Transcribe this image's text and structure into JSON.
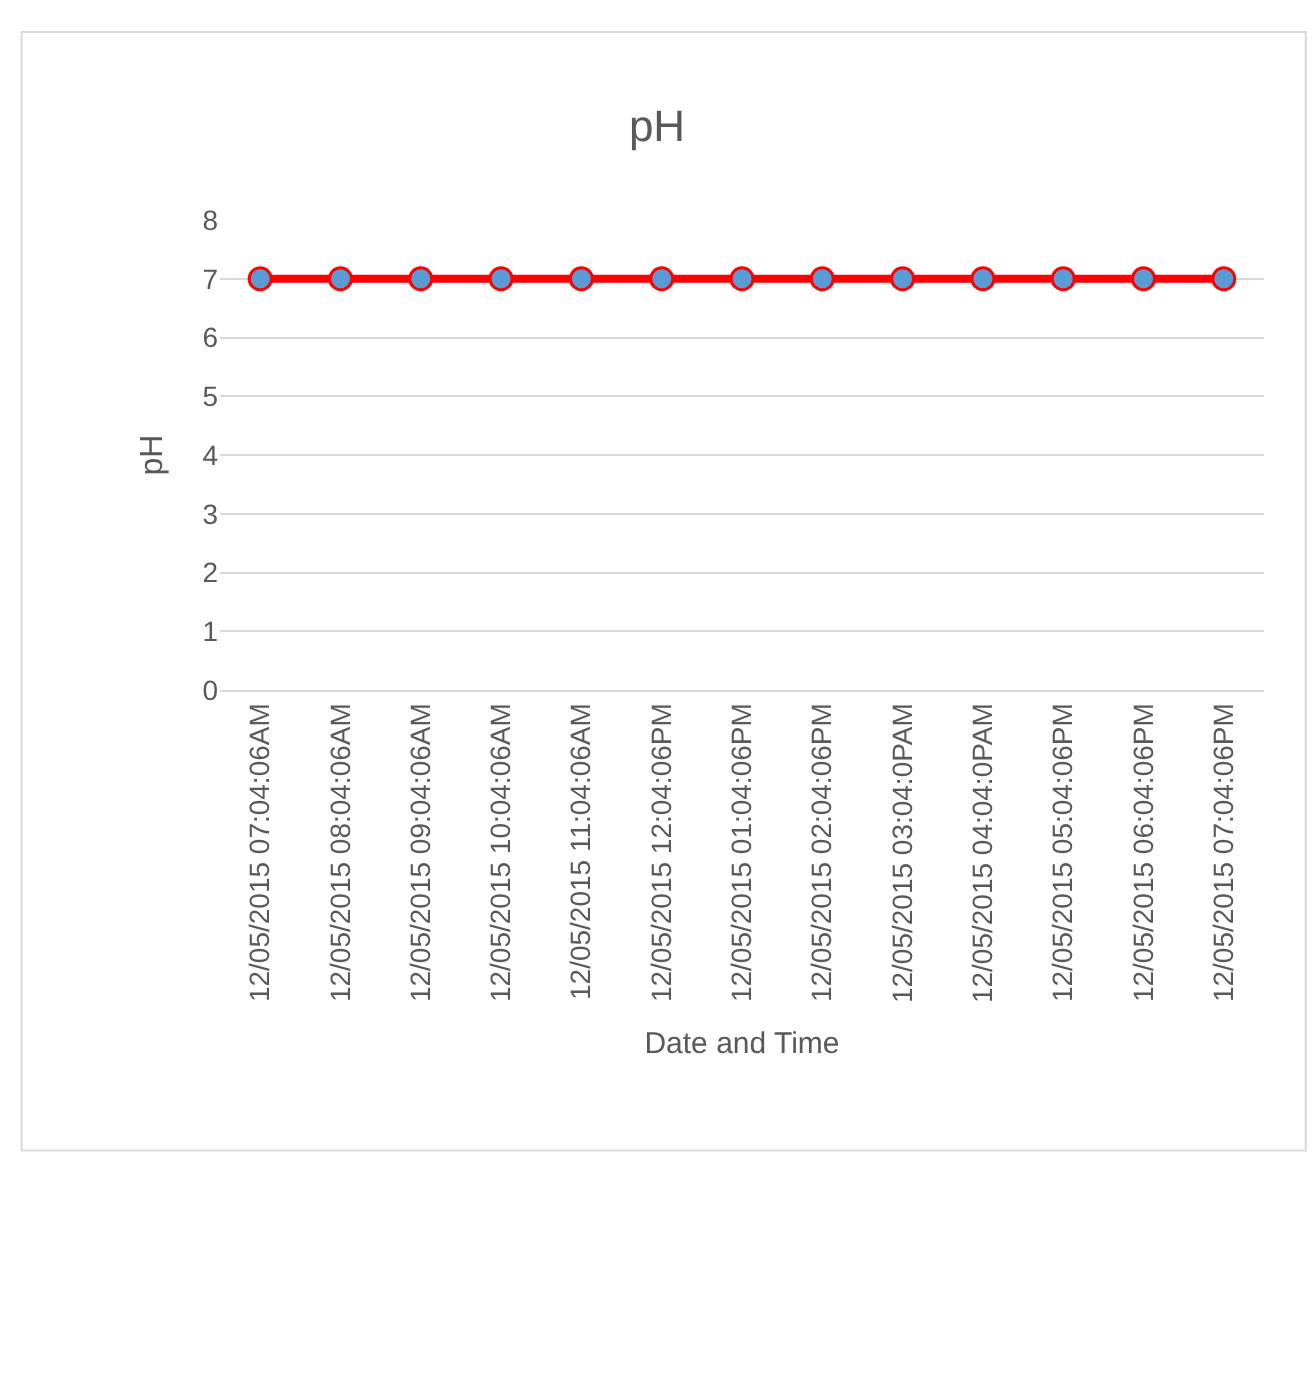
{
  "chart_data": {
    "type": "line",
    "title": "pH",
    "xlabel": "Date and Time",
    "ylabel": "pH",
    "categories": [
      "12/05/2015 07:04:06AM",
      "12/05/2015 08:04:06AM",
      "12/05/2015 09:04:06AM",
      "12/05/2015 10:04:06AM",
      "12/05/2015 11:04:06AM",
      "12/05/2015 12:04:06PM",
      "12/05/2015 01:04:06PM",
      "12/05/2015 02:04:06PM",
      "12/05/2015 03:04:0PAM",
      "12/05/2015 04:04:0PAM",
      "12/05/2015 05:04:06PM",
      "12/05/2015 06:04:06PM",
      "12/05/2015 07:04:06PM"
    ],
    "series": [
      {
        "color": "#ff0000",
        "values": [
          7,
          7,
          7,
          7,
          7,
          7,
          7,
          7,
          7,
          7,
          7,
          7,
          7
        ]
      }
    ],
    "ylim": [
      0,
      8
    ],
    "yticks": [
      0,
      1,
      2,
      3,
      4,
      5,
      6,
      7,
      8
    ],
    "grid": "y",
    "marker": "circle",
    "line_style": "solid"
  }
}
